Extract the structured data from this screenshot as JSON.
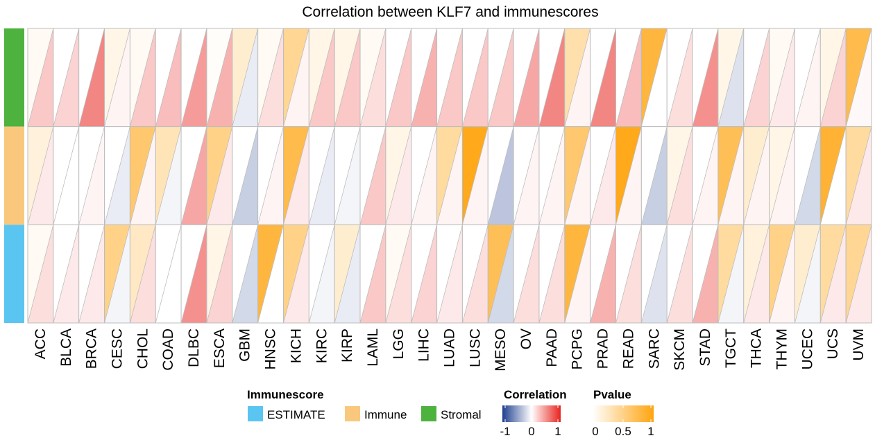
{
  "chart_data": {
    "type": "heatmap",
    "title": "Correlation between KLF7 and immunescores",
    "categories": [
      "ACC",
      "BLCA",
      "BRCA",
      "CESC",
      "CHOL",
      "COAD",
      "DLBC",
      "ESCA",
      "GBM",
      "HNSC",
      "KICH",
      "KIRC",
      "KIRP",
      "LAML",
      "LGG",
      "LIHC",
      "LUAD",
      "LUSC",
      "MESO",
      "OV",
      "PAAD",
      "PCPG",
      "PRAD",
      "READ",
      "SARC",
      "SKCM",
      "STAD",
      "TGCT",
      "THCA",
      "THYM",
      "UCEC",
      "UCS",
      "UVM"
    ],
    "rows": [
      {
        "name": "Stromal",
        "color": "#4DB23E",
        "correlation": [
          0.25,
          0.2,
          0.55,
          0.05,
          0.25,
          0.3,
          0.45,
          0.35,
          -0.1,
          0.15,
          0.05,
          0.25,
          0.25,
          0.15,
          0.25,
          0.35,
          0.25,
          0.25,
          0.25,
          0.4,
          0.55,
          0.05,
          0.55,
          0.3,
          0.0,
          0.15,
          0.5,
          -0.15,
          0.2,
          0.1,
          0.05,
          0.2,
          0.03
        ],
        "pvalue": [
          0.05,
          0.0,
          0.0,
          0.1,
          0.05,
          0.0,
          0.0,
          0.02,
          0.2,
          0.05,
          0.45,
          0.1,
          0.1,
          0.05,
          0.0,
          0.0,
          0.0,
          0.0,
          0.0,
          0.0,
          0.0,
          0.35,
          0.0,
          0.0,
          0.8,
          0.0,
          0.0,
          0.1,
          0.0,
          0.05,
          0.0,
          0.1,
          0.75
        ]
      },
      {
        "name": "Immune",
        "color": "#F9C87C",
        "correlation": [
          0.1,
          0.0,
          0.05,
          -0.1,
          0.05,
          -0.05,
          0.4,
          0.1,
          -0.25,
          0.05,
          0.1,
          -0.1,
          -0.05,
          0.25,
          0.1,
          0.05,
          0.05,
          0.05,
          -0.3,
          0.05,
          0.05,
          0.05,
          0.1,
          0.05,
          -0.25,
          0.15,
          0.05,
          0.05,
          0.05,
          0.05,
          -0.2,
          0.0,
          0.1
        ],
        "pvalue": [
          0.15,
          0.0,
          0.0,
          0.0,
          0.6,
          0.3,
          0.0,
          0.5,
          0.0,
          0.0,
          0.75,
          0.0,
          0.0,
          0.0,
          0.1,
          0.0,
          0.4,
          0.95,
          0.0,
          0.0,
          0.0,
          0.6,
          0.0,
          0.95,
          0.0,
          0.1,
          0.0,
          0.7,
          0.2,
          0.1,
          0.0,
          0.85,
          0.4
        ]
      },
      {
        "name": "ESTIMATE",
        "color": "#5BC5F2",
        "correlation": [
          0.15,
          0.1,
          0.1,
          -0.05,
          0.15,
          0.0,
          0.5,
          0.2,
          -0.2,
          0.0,
          0.1,
          -0.05,
          -0.1,
          0.25,
          0.15,
          0.2,
          0.1,
          0.15,
          -0.2,
          0.15,
          0.15,
          0.05,
          0.35,
          0.15,
          -0.15,
          0.15,
          0.35,
          -0.05,
          0.1,
          0.05,
          -0.05,
          0.1,
          0.1
        ],
        "pvalue": [
          0.05,
          0.0,
          0.0,
          0.5,
          0.25,
          0.0,
          0.0,
          0.1,
          0.0,
          0.8,
          0.5,
          0.0,
          0.2,
          0.0,
          0.05,
          0.0,
          0.0,
          0.0,
          0.7,
          0.0,
          0.0,
          0.8,
          0.0,
          0.0,
          0.0,
          0.0,
          0.0,
          0.4,
          0.15,
          0.5,
          0.2,
          0.4,
          0.45
        ]
      }
    ],
    "legend": {
      "immunescore_title": "Immunescore",
      "immunescore_items": [
        {
          "label": "ESTIMATE",
          "color": "#5BC5F2"
        },
        {
          "label": "Immune",
          "color": "#F9C87C"
        },
        {
          "label": "Stromal",
          "color": "#4DB23E"
        }
      ],
      "correlation_title": "Correlation",
      "correlation_ticks": [
        "-1",
        "0",
        "1"
      ],
      "correlation_colors": [
        "#1F3F8F",
        "#FFFFFF",
        "#E8231E"
      ],
      "pvalue_title": "Pvalue",
      "pvalue_ticks": [
        "0",
        "0.5",
        "1"
      ],
      "pvalue_colors": [
        "#FFFFFF",
        "#FFA40F"
      ]
    }
  }
}
